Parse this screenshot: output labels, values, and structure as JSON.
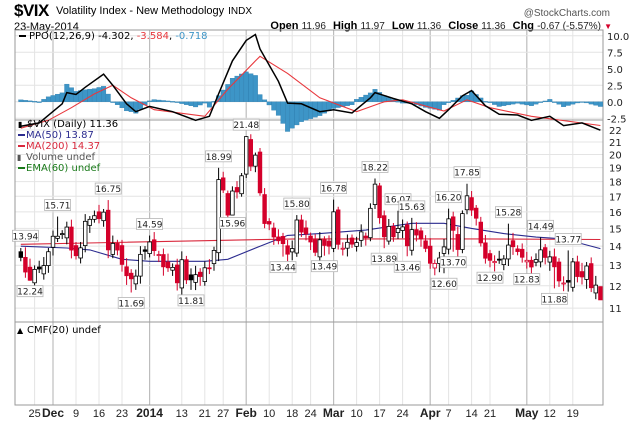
{
  "header": {
    "symbol": "$VIX",
    "name": "Volatility Index - New Methodology",
    "exchange": "INDX",
    "date": "23-May-2014",
    "brand": "@StockCharts.com",
    "open_label": "Open",
    "open": "11.96",
    "high_label": "High",
    "high": "11.97",
    "low_label": "Low",
    "low": "11.36",
    "close_label": "Close",
    "close": "11.36",
    "chg_label": "Chg",
    "chg": "-0.67 (-5.57%)",
    "chg_icon": "triangle-down-icon"
  },
  "colors": {
    "up": "#000000",
    "down": "#d4002a",
    "ma50": "#2b2b8f",
    "ma200": "#d9283c",
    "ppo": "#000000",
    "signal": "#e8383d",
    "hist": "#3d95c7",
    "grid": "#e4e4e4",
    "ema": "#1a7a1a"
  },
  "legends": {
    "ppo_name": "PPO(12,26,9)",
    "ppo_value": "-4.302",
    "signal_value": "-3.584",
    "hist_value": "-0.718",
    "price": "$VIX (Daily) 11.36",
    "ma50": "MA(50) 13.87",
    "ma200": "MA(200) 14.37",
    "volume": "Volume undef",
    "ema60": "EMA(60) undef",
    "cmf": "CMF(20) undef"
  },
  "chart_data": [
    {
      "type": "candlestick",
      "title": "$VIX (Daily)",
      "x_unit": "trading day index (0 = 20-Nov-2013, 126 = 23-May-2014)",
      "ylim": [
        11,
        22
      ],
      "yscale": "log",
      "yticks": [
        "11",
        "12",
        "13",
        "14",
        "15",
        "16",
        "17",
        "18",
        "19",
        "20",
        "21",
        "22"
      ],
      "close": [
        13.4,
        12.66,
        12.26,
        12.79,
        12.81,
        12.98,
        13.7,
        14.55,
        14.55,
        14.7,
        15.08,
        13.79,
        13.49,
        13.91,
        15.42,
        15.54,
        15.76,
        15.58,
        15.98,
        13.8,
        14.15,
        13.79,
        13.04,
        12.48,
        12.33,
        12.46,
        13.56,
        13.72,
        14.23,
        13.76,
        13.55,
        12.92,
        12.87,
        12.89,
        12.14,
        13.28,
        12.28,
        12.28,
        12.53,
        12.44,
        12.87,
        12.84,
        13.77,
        18.14,
        17.42,
        15.8,
        17.35,
        17.29,
        18.41,
        21.44,
        19.11,
        19.95,
        17.23,
        15.29,
        15.26,
        14.51,
        14.3,
        14.14,
        13.57,
        13.87,
        15.5,
        14.79,
        14.68,
        14.23,
        13.67,
        14.35,
        14.04,
        14.0,
        16.0,
        14.1,
        13.89,
        14.21,
        14.11,
        14.2,
        14.8,
        14.47,
        16.22,
        17.82,
        15.64,
        14.52,
        15.12,
        14.52,
        15.0,
        15.09,
        14.02,
        14.93,
        14.62,
        14.41,
        13.88,
        13.1,
        13.09,
        13.37,
        13.96,
        15.57,
        14.89,
        13.82,
        15.89,
        17.03,
        16.11,
        15.61,
        14.18,
        13.36,
        13.25,
        13.19,
        13.27,
        13.32,
        14.06,
        13.97,
        13.71,
        13.41,
        13.25,
        12.91,
        13.29,
        13.8,
        13.4,
        13.43,
        12.92,
        12.23,
        12.13,
        12.17,
        13.17,
        12.44,
        12.42,
        12.96,
        11.91,
        12.03,
        11.36
      ],
      "last_bar": {
        "open": 11.96,
        "high": 11.97,
        "low": 11.36,
        "close": 11.36
      },
      "annotations": [
        {
          "i": 1,
          "v": "13.94",
          "kind": "high"
        },
        {
          "i": 2,
          "v": "12.24",
          "kind": "low"
        },
        {
          "i": 8,
          "v": "15.71",
          "kind": "high"
        },
        {
          "i": 19,
          "v": "16.75",
          "kind": "high"
        },
        {
          "i": 24,
          "v": "11.69",
          "kind": "low"
        },
        {
          "i": 28,
          "v": "14.59",
          "kind": "high"
        },
        {
          "i": 37,
          "v": "11.81",
          "kind": "low"
        },
        {
          "i": 43,
          "v": "18.99",
          "kind": "high"
        },
        {
          "i": 49,
          "v": "21.48",
          "kind": "high"
        },
        {
          "i": 46,
          "v": "15.96",
          "kind": "low"
        },
        {
          "i": 60,
          "v": "15.80",
          "kind": "high"
        },
        {
          "i": 57,
          "v": "13.44",
          "kind": "low"
        },
        {
          "i": 68,
          "v": "16.78",
          "kind": "high"
        },
        {
          "i": 66,
          "v": "13.49",
          "kind": "low"
        },
        {
          "i": 77,
          "v": "18.22",
          "kind": "high"
        },
        {
          "i": 82,
          "v": "16.07",
          "kind": "high"
        },
        {
          "i": 85,
          "v": "15.63",
          "kind": "high"
        },
        {
          "i": 79,
          "v": "13.89",
          "kind": "low"
        },
        {
          "i": 84,
          "v": "13.46",
          "kind": "low"
        },
        {
          "i": 93,
          "v": "16.20",
          "kind": "high"
        },
        {
          "i": 97,
          "v": "17.85",
          "kind": "high"
        },
        {
          "i": 92,
          "v": "12.60",
          "kind": "low"
        },
        {
          "i": 94,
          "v": "13.70",
          "kind": "low"
        },
        {
          "i": 106,
          "v": "15.28",
          "kind": "high"
        },
        {
          "i": 102,
          "v": "12.90",
          "kind": "low"
        },
        {
          "i": 113,
          "v": "14.49",
          "kind": "high"
        },
        {
          "i": 110,
          "v": "12.83",
          "kind": "low"
        },
        {
          "i": 119,
          "v": "13.77",
          "kind": "high"
        },
        {
          "i": 116,
          "v": "11.88",
          "kind": "low"
        }
      ],
      "ma50": [
        [
          0,
          14.0
        ],
        [
          10,
          13.9
        ],
        [
          15,
          13.8
        ],
        [
          22,
          13.3
        ],
        [
          28,
          13.2
        ],
        [
          40,
          13.2
        ],
        [
          45,
          13.3
        ],
        [
          52,
          14.0
        ],
        [
          58,
          14.6
        ],
        [
          65,
          14.7
        ],
        [
          75,
          14.9
        ],
        [
          85,
          15.3
        ],
        [
          92,
          15.3
        ],
        [
          98,
          15.0
        ],
        [
          105,
          14.7
        ],
        [
          112,
          14.5
        ],
        [
          118,
          14.4
        ],
        [
          126,
          13.87
        ]
      ],
      "ma200": [
        [
          0,
          14.1
        ],
        [
          20,
          14.2
        ],
        [
          40,
          14.3
        ],
        [
          60,
          14.4
        ],
        [
          80,
          14.4
        ],
        [
          100,
          14.4
        ],
        [
          126,
          14.37
        ]
      ]
    },
    {
      "type": "line",
      "title": "PPO(12,26,9)",
      "ylim": [
        -3.5,
        10.5
      ],
      "yticks": [
        "10.0",
        "7.5",
        "5.0",
        "2.5",
        "0.0",
        "-2.5"
      ],
      "ppo": [
        [
          0,
          -3.7
        ],
        [
          4,
          -3.2
        ],
        [
          9,
          -0.3
        ],
        [
          10,
          1.4
        ],
        [
          12,
          1.1
        ],
        [
          14,
          2.2
        ],
        [
          18,
          4.2
        ],
        [
          20,
          2.5
        ],
        [
          23,
          -0.3
        ],
        [
          25,
          -1.5
        ],
        [
          28,
          -0.7
        ],
        [
          33,
          -1.5
        ],
        [
          38,
          -2.8
        ],
        [
          41,
          -2.2
        ],
        [
          43,
          1.2
        ],
        [
          46,
          6.2
        ],
        [
          49,
          9.3
        ],
        [
          51,
          10.2
        ],
        [
          52,
          8.0
        ],
        [
          56,
          3.1
        ],
        [
          58,
          -0.2
        ],
        [
          61,
          -0.3
        ],
        [
          65,
          -1.5
        ],
        [
          68,
          -1.2
        ],
        [
          72,
          -1.7
        ],
        [
          76,
          0.6
        ],
        [
          77,
          1.4
        ],
        [
          81,
          0.5
        ],
        [
          85,
          -0.3
        ],
        [
          88,
          -1.5
        ],
        [
          91,
          -2.5
        ],
        [
          93,
          -1.2
        ],
        [
          96,
          0.9
        ],
        [
          98,
          1.7
        ],
        [
          101,
          -0.6
        ],
        [
          104,
          -1.9
        ],
        [
          108,
          -2.0
        ],
        [
          111,
          -2.8
        ],
        [
          115,
          -2.2
        ],
        [
          118,
          -3.6
        ],
        [
          122,
          -3.2
        ],
        [
          126,
          -4.302
        ]
      ],
      "signal": [
        [
          0,
          -4.0
        ],
        [
          6,
          -2.8
        ],
        [
          11,
          -0.9
        ],
        [
          16,
          1.2
        ],
        [
          20,
          2.5
        ],
        [
          24,
          0.6
        ],
        [
          29,
          -1.2
        ],
        [
          40,
          -2.2
        ],
        [
          45,
          1.9
        ],
        [
          51,
          6.2
        ],
        [
          52,
          6.9
        ],
        [
          58,
          4.3
        ],
        [
          65,
          0.6
        ],
        [
          73,
          -1.5
        ],
        [
          79,
          0.0
        ],
        [
          83,
          0.3
        ],
        [
          92,
          -1.4
        ],
        [
          97,
          0.3
        ],
        [
          102,
          -0.9
        ],
        [
          111,
          -2.2
        ],
        [
          126,
          -3.584
        ]
      ]
    }
  ],
  "x_axis": [
    {
      "i": 3,
      "label": "25",
      "major": false
    },
    {
      "i": 7,
      "label": "Dec",
      "major": true
    },
    {
      "i": 12,
      "label": "9",
      "major": false
    },
    {
      "i": 17,
      "label": "16",
      "major": false
    },
    {
      "i": 22,
      "label": "23",
      "major": false
    },
    {
      "i": 28,
      "label": "2014",
      "major": true
    },
    {
      "i": 35,
      "label": "13",
      "major": false
    },
    {
      "i": 40,
      "label": "21",
      "major": false
    },
    {
      "i": 44,
      "label": "27",
      "major": false
    },
    {
      "i": 49,
      "label": "Feb",
      "major": true
    },
    {
      "i": 54,
      "label": "10",
      "major": false
    },
    {
      "i": 59,
      "label": "18",
      "major": false
    },
    {
      "i": 63,
      "label": "24",
      "major": false
    },
    {
      "i": 68,
      "label": "Mar",
      "major": true
    },
    {
      "i": 73,
      "label": "10",
      "major": false
    },
    {
      "i": 78,
      "label": "17",
      "major": false
    },
    {
      "i": 83,
      "label": "24",
      "major": false
    },
    {
      "i": 89,
      "label": "Apr",
      "major": true
    },
    {
      "i": 93,
      "label": "7",
      "major": false
    },
    {
      "i": 98,
      "label": "14",
      "major": false
    },
    {
      "i": 102,
      "label": "21",
      "major": false
    },
    {
      "i": 110,
      "label": "May",
      "major": true
    },
    {
      "i": 115,
      "label": "12",
      "major": false
    },
    {
      "i": 120,
      "label": "19",
      "major": false
    }
  ]
}
